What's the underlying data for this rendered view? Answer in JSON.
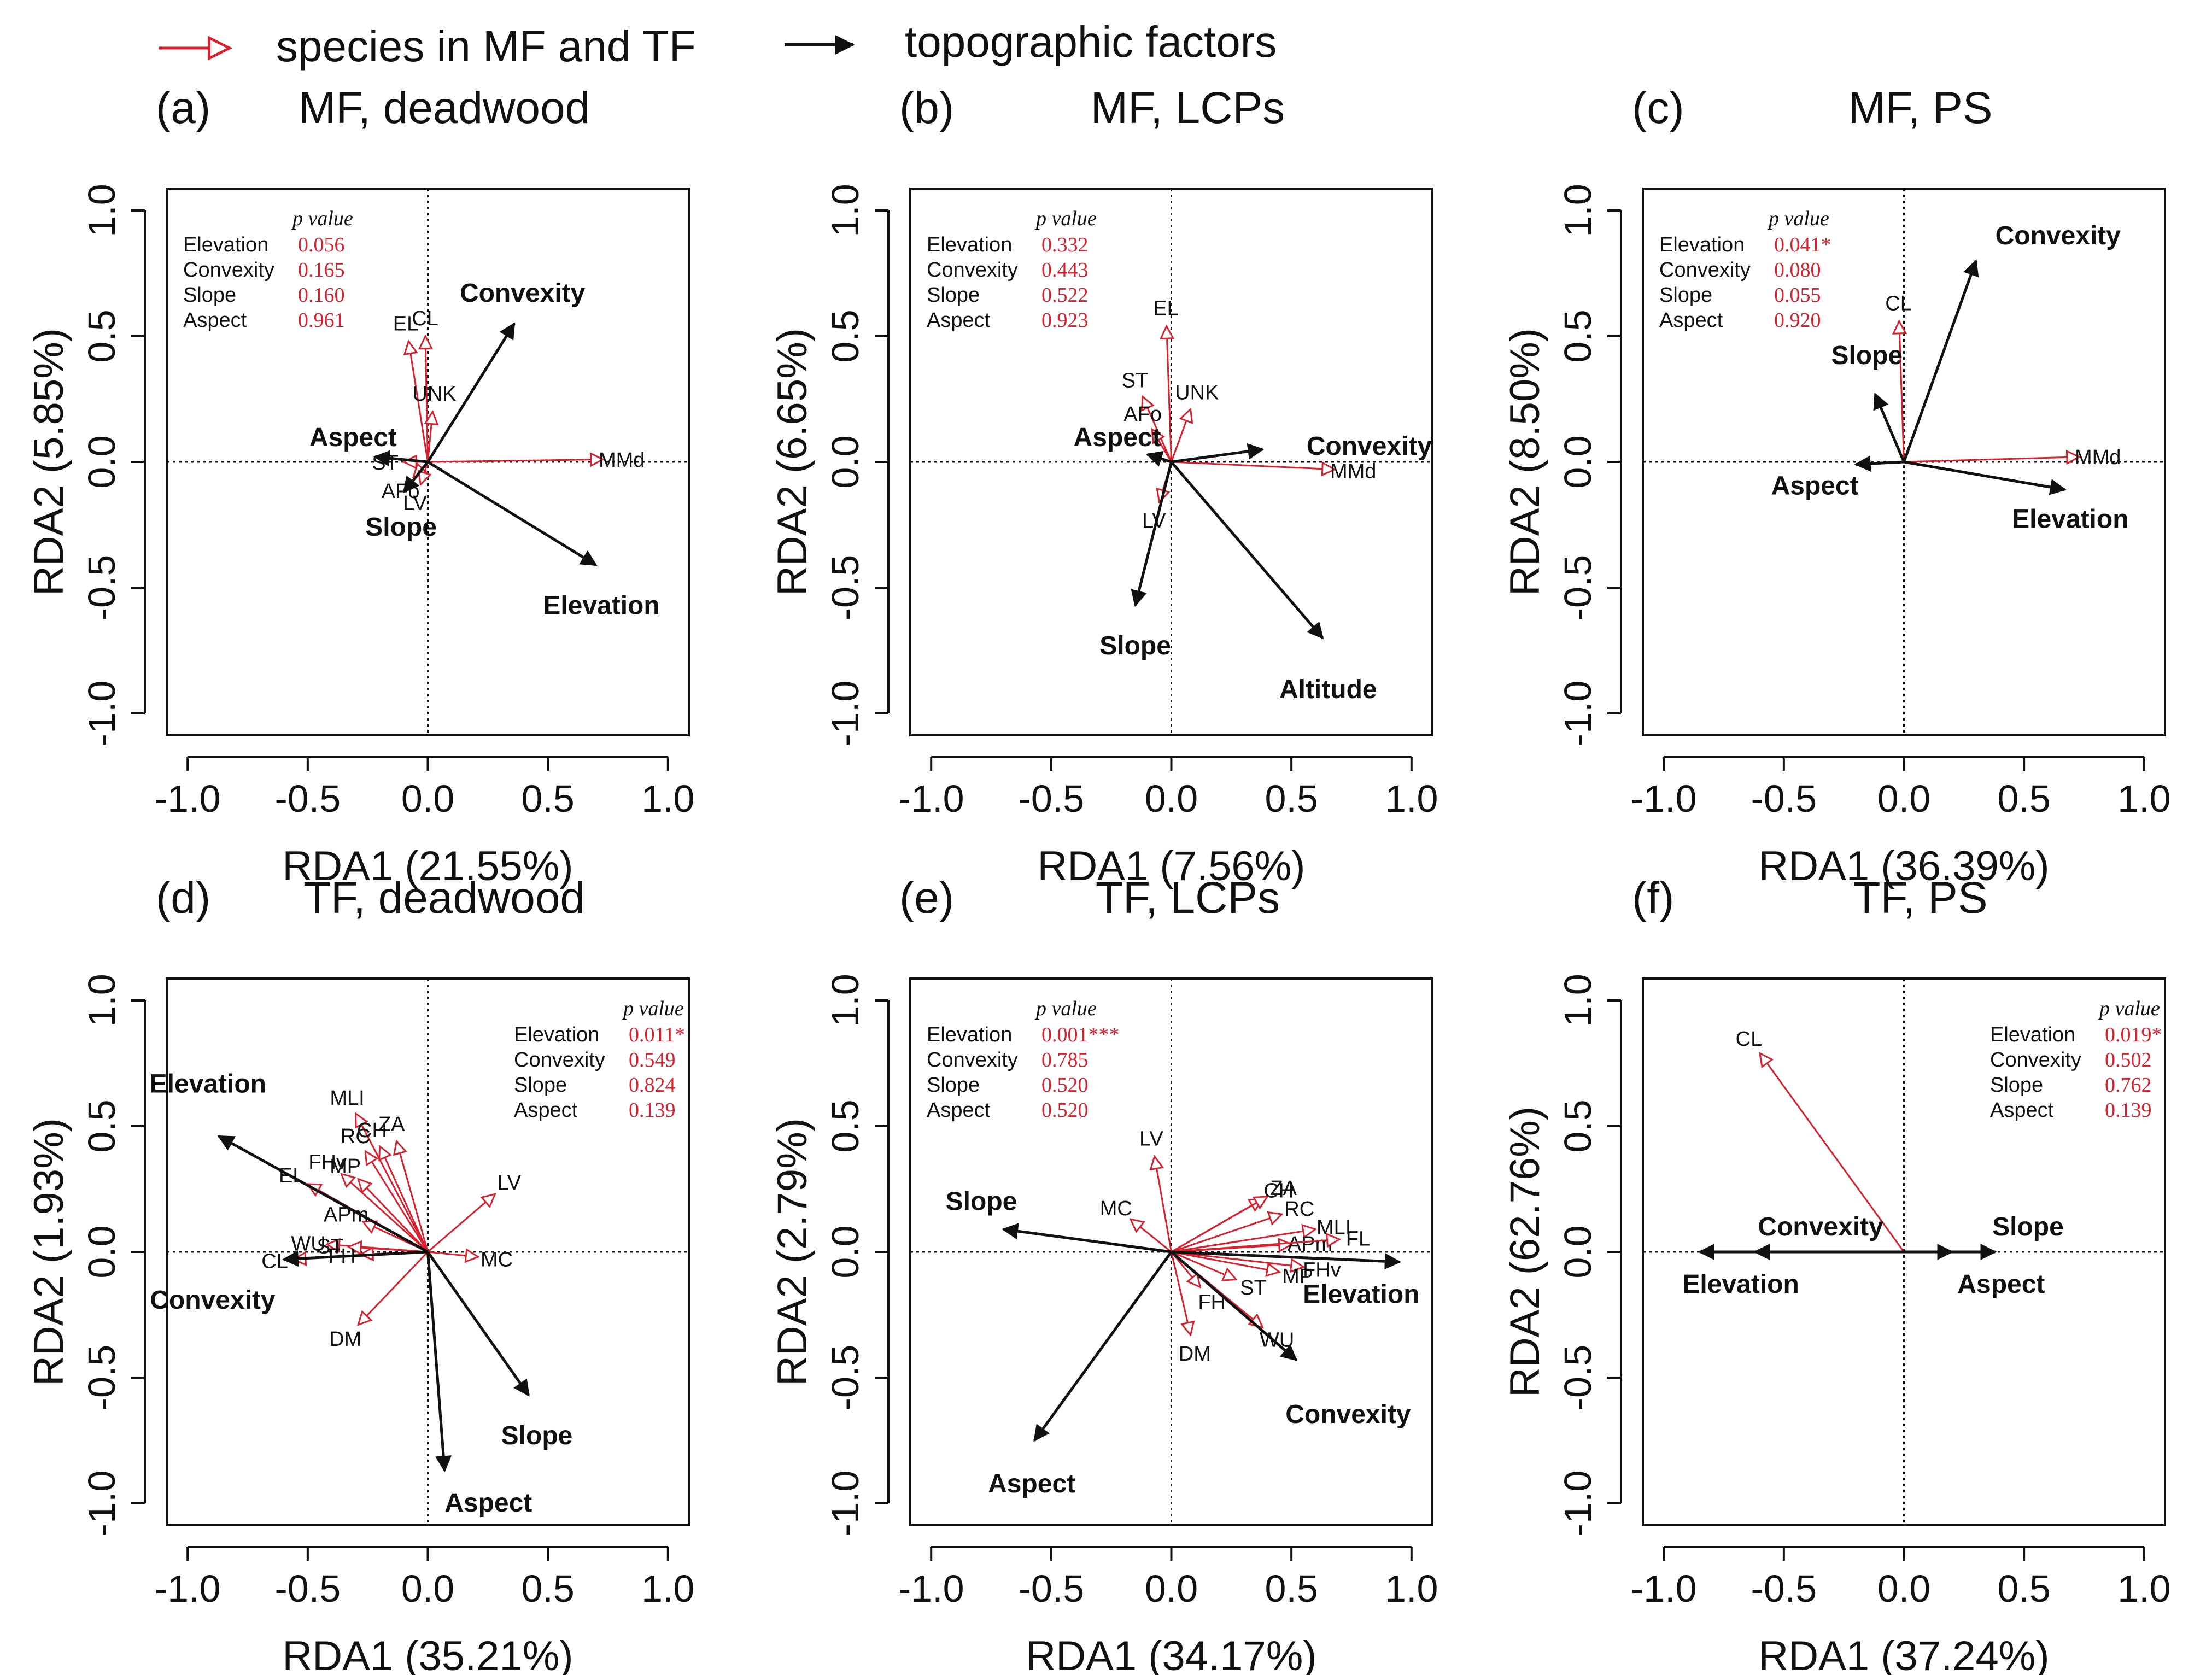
{
  "legend": {
    "species_label": "species in MF and TF",
    "topo_label": "topographic factors"
  },
  "colors": {
    "species": "#d9202e",
    "topo": "#111111",
    "pvalue": "#d9202e",
    "axis": "#111111"
  },
  "axis_ticks": [
    "-1.0",
    "-0.5",
    "0.0",
    "0.5",
    "1.0"
  ],
  "pvalue_header": "p value",
  "chart_data": [
    {
      "type": "scatter",
      "panel": "(a)",
      "title": "MF, deadwood",
      "xlabel": "RDA1 (21.55%)",
      "ylabel": "RDA2 (5.85%)",
      "xlim": [
        -1.0,
        1.0
      ],
      "ylim": [
        -1.0,
        1.0
      ],
      "pvalues": [
        {
          "factor": "Elevation",
          "p": "0.056"
        },
        {
          "factor": "Convexity",
          "p": "0.165"
        },
        {
          "factor": "Slope",
          "p": "0.160"
        },
        {
          "factor": "Aspect",
          "p": "0.961"
        }
      ],
      "topo_arrows": [
        {
          "name": "Convexity",
          "x": 0.36,
          "y": 0.55
        },
        {
          "name": "Aspect",
          "x": -0.22,
          "y": 0.02
        },
        {
          "name": "Slope",
          "x": -0.1,
          "y": -0.12
        },
        {
          "name": "Elevation",
          "x": 0.7,
          "y": -0.41
        }
      ],
      "species_arrows": [
        {
          "name": "EL",
          "x": -0.08,
          "y": 0.48
        },
        {
          "name": "CL",
          "x": -0.01,
          "y": 0.5
        },
        {
          "name": "UNK",
          "x": 0.02,
          "y": 0.2
        },
        {
          "name": "ST",
          "x": -0.1,
          "y": 0.0
        },
        {
          "name": "AFo",
          "x": -0.06,
          "y": -0.06
        },
        {
          "name": "LV",
          "x": -0.03,
          "y": -0.09
        },
        {
          "name": "MMd",
          "x": 0.73,
          "y": 0.01
        }
      ]
    },
    {
      "type": "scatter",
      "panel": "(b)",
      "title": "MF, LCPs",
      "xlabel": "RDA1 (7.56%)",
      "ylabel": "RDA2 (6.65%)",
      "xlim": [
        -1.0,
        1.0
      ],
      "ylim": [
        -1.0,
        1.0
      ],
      "pvalues": [
        {
          "factor": "Elevation",
          "p": "0.332"
        },
        {
          "factor": "Convexity",
          "p": "0.443"
        },
        {
          "factor": "Slope",
          "p": "0.522"
        },
        {
          "factor": "Aspect",
          "p": "0.923"
        }
      ],
      "topo_arrows": [
        {
          "name": "Aspect",
          "x": -0.1,
          "y": 0.03
        },
        {
          "name": "Convexity",
          "x": 0.38,
          "y": 0.05
        },
        {
          "name": "Slope",
          "x": -0.15,
          "y": -0.57
        },
        {
          "name": "Altitude",
          "x": 0.63,
          "y": -0.7
        }
      ],
      "species_arrows": [
        {
          "name": "EL",
          "x": -0.02,
          "y": 0.54
        },
        {
          "name": "ST",
          "x": -0.12,
          "y": 0.26
        },
        {
          "name": "UNK",
          "x": 0.08,
          "y": 0.21
        },
        {
          "name": "AFo",
          "x": -0.08,
          "y": 0.13
        },
        {
          "name": "LV",
          "x": -0.05,
          "y": -0.16
        },
        {
          "name": "MMd",
          "x": 0.68,
          "y": -0.03
        }
      ]
    },
    {
      "type": "scatter",
      "panel": "(c)",
      "title": "MF, PS",
      "xlabel": "RDA1 (36.39%)",
      "ylabel": "RDA2 (8.50%)",
      "xlim": [
        -1.0,
        1.0
      ],
      "ylim": [
        -1.0,
        1.0
      ],
      "pvalues": [
        {
          "factor": "Elevation",
          "p": "0.041*"
        },
        {
          "factor": "Convexity",
          "p": "0.080"
        },
        {
          "factor": "Slope",
          "p": "0.055"
        },
        {
          "factor": "Aspect",
          "p": "0.920"
        }
      ],
      "topo_arrows": [
        {
          "name": "Convexity",
          "x": 0.3,
          "y": 0.8
        },
        {
          "name": "Slope",
          "x": -0.12,
          "y": 0.27
        },
        {
          "name": "Aspect",
          "x": -0.2,
          "y": -0.01
        },
        {
          "name": "Elevation",
          "x": 0.67,
          "y": -0.11
        }
      ],
      "species_arrows": [
        {
          "name": "CL",
          "x": -0.02,
          "y": 0.56
        },
        {
          "name": "MMd",
          "x": 0.73,
          "y": 0.02
        }
      ]
    },
    {
      "type": "scatter",
      "panel": "(d)",
      "title": "TF, deadwood",
      "xlabel": "RDA1 (35.21%)",
      "ylabel": "RDA2 (1.93%)",
      "xlim": [
        -1.0,
        1.0
      ],
      "ylim": [
        -1.0,
        1.0
      ],
      "pvalues": [
        {
          "factor": "Elevation",
          "p": "0.011*"
        },
        {
          "factor": "Convexity",
          "p": "0.549"
        },
        {
          "factor": "Slope",
          "p": "0.824"
        },
        {
          "factor": "Aspect",
          "p": "0.139"
        }
      ],
      "topo_arrows": [
        {
          "name": "Elevation",
          "x": -0.87,
          "y": 0.46
        },
        {
          "name": "Convexity",
          "x": -0.6,
          "y": -0.03
        },
        {
          "name": "Slope",
          "x": 0.42,
          "y": -0.57
        },
        {
          "name": "Aspect",
          "x": 0.07,
          "y": -0.87
        }
      ],
      "species_arrows": [
        {
          "name": "EL",
          "x": -0.5,
          "y": 0.27
        },
        {
          "name": "MLI",
          "x": -0.3,
          "y": 0.55
        },
        {
          "name": "RC",
          "x": -0.26,
          "y": 0.4
        },
        {
          "name": "CH",
          "x": -0.2,
          "y": 0.42
        },
        {
          "name": "ZA",
          "x": -0.13,
          "y": 0.44
        },
        {
          "name": "FHv",
          "x": -0.36,
          "y": 0.31
        },
        {
          "name": "MP",
          "x": -0.29,
          "y": 0.29
        },
        {
          "name": "APm",
          "x": -0.27,
          "y": 0.12
        },
        {
          "name": "WU",
          "x": -0.42,
          "y": 0.03
        },
        {
          "name": "ST",
          "x": -0.33,
          "y": 0.02
        },
        {
          "name": "CL",
          "x": -0.56,
          "y": -0.03
        },
        {
          "name": "FH",
          "x": -0.28,
          "y": -0.01
        },
        {
          "name": "DM",
          "x": -0.29,
          "y": -0.29
        },
        {
          "name": "LV",
          "x": 0.28,
          "y": 0.23
        },
        {
          "name": "MC",
          "x": 0.21,
          "y": -0.02
        }
      ]
    },
    {
      "type": "scatter",
      "panel": "(e)",
      "title": "TF, LCPs",
      "xlabel": "RDA1 (34.17%)",
      "ylabel": "RDA2 (2.79%)",
      "xlim": [
        -1.0,
        1.0
      ],
      "ylim": [
        -1.0,
        1.0
      ],
      "pvalues": [
        {
          "factor": "Elevation",
          "p": "0.001***"
        },
        {
          "factor": "Convexity",
          "p": "0.785"
        },
        {
          "factor": "Slope",
          "p": "0.520"
        },
        {
          "factor": "Aspect",
          "p": "0.520"
        }
      ],
      "topo_arrows": [
        {
          "name": "Slope",
          "x": -0.7,
          "y": 0.09
        },
        {
          "name": "Aspect",
          "x": -0.57,
          "y": -0.75
        },
        {
          "name": "Elevation",
          "x": 0.95,
          "y": -0.04
        },
        {
          "name": "Convexity",
          "x": 0.52,
          "y": -0.43
        }
      ],
      "species_arrows": [
        {
          "name": "LV",
          "x": -0.07,
          "y": 0.38
        },
        {
          "name": "MC",
          "x": -0.17,
          "y": 0.13
        },
        {
          "name": "CH",
          "x": 0.38,
          "y": 0.21
        },
        {
          "name": "ZA",
          "x": 0.4,
          "y": 0.22
        },
        {
          "name": "RC",
          "x": 0.46,
          "y": 0.15
        },
        {
          "name": "MLI",
          "x": 0.6,
          "y": 0.09
        },
        {
          "name": "APm",
          "x": 0.5,
          "y": 0.03
        },
        {
          "name": "FL",
          "x": 0.7,
          "y": 0.05
        },
        {
          "name": "FHv",
          "x": 0.55,
          "y": -0.06
        },
        {
          "name": "MP",
          "x": 0.45,
          "y": -0.08
        },
        {
          "name": "ST",
          "x": 0.27,
          "y": -0.11
        },
        {
          "name": "WU",
          "x": 0.38,
          "y": -0.3
        },
        {
          "name": "FH",
          "x": 0.12,
          "y": -0.14
        },
        {
          "name": "DM",
          "x": 0.08,
          "y": -0.33
        }
      ]
    },
    {
      "type": "scatter",
      "panel": "(f)",
      "title": "TF, PS",
      "xlabel": "RDA1 (37.24%)",
      "ylabel": "RDA2 (62.76%)",
      "xlim": [
        -1.0,
        1.0
      ],
      "ylim": [
        -1.0,
        1.0
      ],
      "pvalues": [
        {
          "factor": "Elevation",
          "p": "0.019*"
        },
        {
          "factor": "Convexity",
          "p": "0.502"
        },
        {
          "factor": "Slope",
          "p": "0.762"
        },
        {
          "factor": "Aspect",
          "p": "0.139"
        }
      ],
      "topo_arrows": [
        {
          "name": "Elevation",
          "x": -0.85,
          "y": 0.0
        },
        {
          "name": "Convexity",
          "x": -0.62,
          "y": 0.0
        },
        {
          "name": "Slope",
          "x": 0.38,
          "y": 0.0
        },
        {
          "name": "Aspect",
          "x": 0.2,
          "y": 0.0
        }
      ],
      "species_arrows": [
        {
          "name": "CL",
          "x": -0.6,
          "y": 0.79
        }
      ]
    }
  ]
}
